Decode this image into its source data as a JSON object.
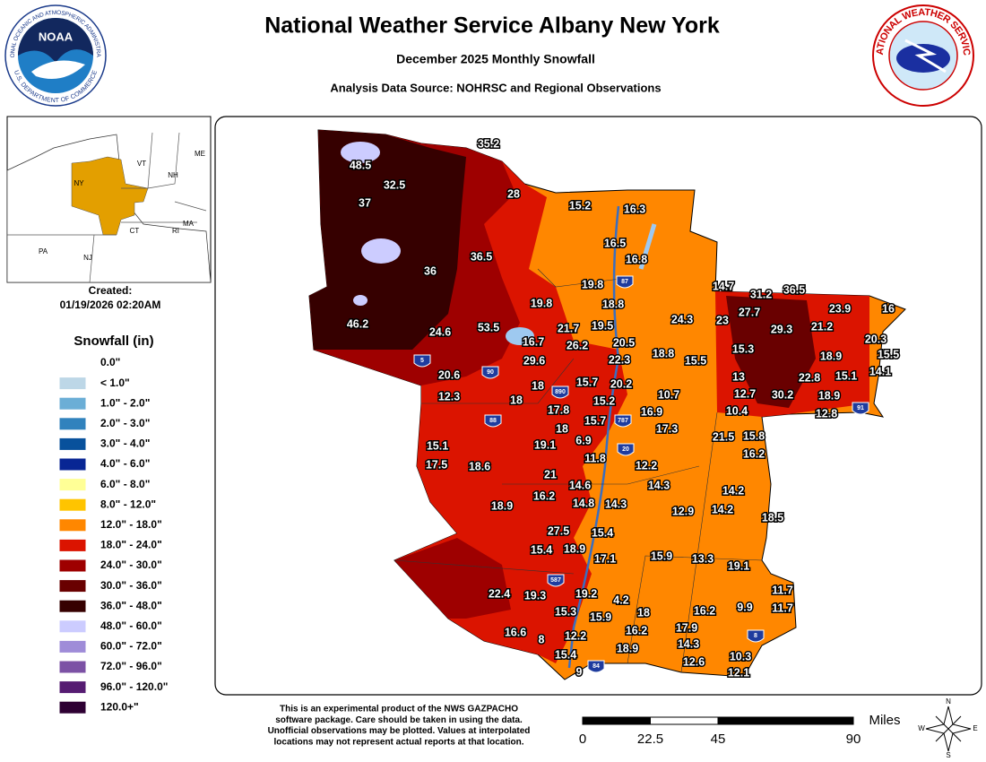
{
  "header": {
    "title": "National Weather Service Albany New York",
    "subtitle": "December 2025 Monthly Snowfall",
    "source": "Analysis Data Source: NOHRSC and Regional Observations"
  },
  "logos": {
    "noaa": "NOAA",
    "noaa_ring_top": "NATIONAL OCEANIC AND ATMOSPHERIC ADMINISTRATION",
    "noaa_ring_bottom": "U.S. DEPARTMENT OF COMMERCE",
    "nws_ring": "NATIONAL WEATHER SERVICE"
  },
  "inset": {
    "states": [
      "VT",
      "NH",
      "ME",
      "NY",
      "MA",
      "CT",
      "RI",
      "PA",
      "NJ"
    ]
  },
  "created": {
    "label": "Created:",
    "timestamp": "01/19/2026 02:20AM"
  },
  "legend": {
    "title": "Snowfall (in)",
    "entries": [
      {
        "label": "0.0\"",
        "color": "#ffffff"
      },
      {
        "label": "< 1.0\"",
        "color": "#bdd7e7"
      },
      {
        "label": "1.0\" - 2.0\"",
        "color": "#6baed6"
      },
      {
        "label": "2.0\" - 3.0\"",
        "color": "#3182bd"
      },
      {
        "label": "3.0\" - 4.0\"",
        "color": "#08519c"
      },
      {
        "label": "4.0\" - 6.0\"",
        "color": "#082694"
      },
      {
        "label": "6.0\" - 8.0\"",
        "color": "#ffff96"
      },
      {
        "label": "8.0\" - 12.0\"",
        "color": "#ffc400"
      },
      {
        "label": "12.0\" - 18.0\"",
        "color": "#ff8700"
      },
      {
        "label": "18.0\" - 24.0\"",
        "color": "#db1400"
      },
      {
        "label": "24.0\" - 30.0\"",
        "color": "#9e0000"
      },
      {
        "label": "30.0\" - 36.0\"",
        "color": "#690000"
      },
      {
        "label": "36.0\" - 48.0\"",
        "color": "#360000"
      },
      {
        "label": "48.0\" - 60.0\"",
        "color": "#ccccff"
      },
      {
        "label": "60.0\" - 72.0\"",
        "color": "#9f8cd8"
      },
      {
        "label": "72.0\" - 96.0\"",
        "color": "#7c52a5"
      },
      {
        "label": "96.0\" - 120.0\"",
        "color": "#561c72"
      },
      {
        "label": "120.0+\"",
        "color": "#2e0033"
      }
    ]
  },
  "stations": [
    35.2,
    48.5,
    32.5,
    37,
    28,
    15.2,
    16.3,
    16.5,
    16.8,
    36.5,
    36,
    19.8,
    18.8,
    19.8,
    14.7,
    31.2,
    36.5,
    23.9,
    16,
    27.7,
    46.2,
    24.6,
    53.5,
    21.7,
    19.5,
    24.3,
    23,
    29.3,
    21.2,
    20.3,
    16.7,
    26.2,
    20.5,
    15.3,
    18.9,
    15.5,
    29.6,
    22.3,
    18.8,
    15.5,
    14.1,
    20.6,
    13,
    22.8,
    15.1,
    18,
    15.7,
    20.2,
    10.7,
    12.7,
    30.2,
    18.9,
    12.3,
    18,
    15.2,
    16.9,
    10.4,
    12.8,
    17.8,
    15.7,
    17.3,
    18,
    21.5,
    15.8,
    6.9,
    15.1,
    19.1,
    16.2,
    11.8,
    12.2,
    17.5,
    18.6,
    21,
    14.6,
    14.3,
    14.2,
    16.2,
    14.8,
    14.3,
    18.9,
    12.9,
    14.2,
    18.5,
    27.5,
    15.4,
    15.4,
    18.9,
    17.1,
    15.9,
    13.3,
    19.1,
    11.7,
    22.4,
    19.3,
    19.2,
    4.2,
    18,
    15.3,
    15.9,
    16.2,
    9.9,
    11.7,
    16.2,
    16.6,
    8,
    12.2,
    17.9,
    18.9,
    14.3,
    15.4,
    10.3,
    12.6,
    9,
    12.1
  ],
  "interstates": [
    "87",
    "5",
    "90",
    "890",
    "88",
    "787",
    "20",
    "587",
    "84",
    "8",
    "91"
  ],
  "disclaimer": [
    "This is an experimental product of the NWS GAZPACHO",
    "software package. Care should be taken in using the data.",
    "Unofficial observations may be plotted. Values at interpolated",
    "locations may not represent actual reports at that location."
  ],
  "scale_bar": {
    "unit": "Miles",
    "ticks": [
      0,
      22.5,
      45,
      90
    ]
  },
  "compass": [
    "N",
    "S",
    "E",
    "W"
  ]
}
